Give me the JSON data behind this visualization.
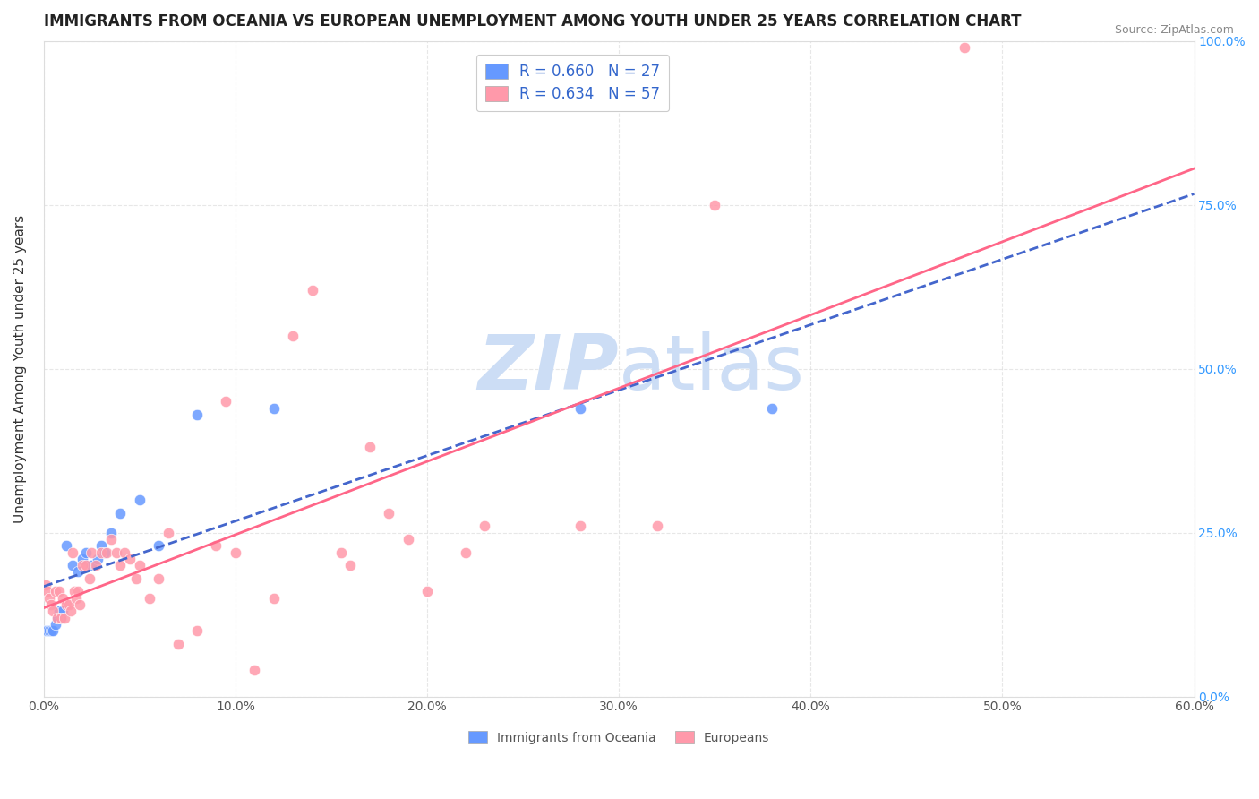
{
  "title": "IMMIGRANTS FROM OCEANIA VS EUROPEAN UNEMPLOYMENT AMONG YOUTH UNDER 25 YEARS CORRELATION CHART",
  "source": "Source: ZipAtlas.com",
  "xlabel": "",
  "ylabel": "Unemployment Among Youth under 25 years",
  "xlim": [
    0.0,
    0.6
  ],
  "ylim": [
    0.0,
    1.0
  ],
  "xticks": [
    0.0,
    0.1,
    0.2,
    0.3,
    0.4,
    0.5,
    0.6
  ],
  "xticklabels": [
    "0.0%",
    "10.0%",
    "20.0%",
    "30.0%",
    "40.0%",
    "50.0%",
    "60.0%"
  ],
  "yticks_left": [
    0.0,
    0.25,
    0.5,
    0.75,
    1.0
  ],
  "yticklabels_left": [
    "",
    "",
    "",
    "",
    ""
  ],
  "yticks_right": [
    0.0,
    0.25,
    0.5,
    0.75,
    1.0
  ],
  "yticklabels_right": [
    "0.0%",
    "25.0%",
    "50.0%",
    "75.0%",
    "100.0%"
  ],
  "legend_r1": "R = 0.660",
  "legend_n1": "N = 27",
  "legend_r2": "R = 0.634",
  "legend_n2": "N = 57",
  "color_blue": "#6699FF",
  "color_blue_line": "#4466CC",
  "color_pink": "#FF99AA",
  "color_pink_line": "#FF6688",
  "color_text_blue": "#3366CC",
  "color_right_axis": "#3399FF",
  "watermark_color": "#CCDDF5",
  "background_color": "#FFFFFF",
  "grid_color": "#DDDDDD",
  "oceania_x": [
    0.001,
    0.002,
    0.003,
    0.004,
    0.005,
    0.006,
    0.007,
    0.008,
    0.009,
    0.01,
    0.012,
    0.015,
    0.018,
    0.02,
    0.022,
    0.025,
    0.028,
    0.03,
    0.032,
    0.035,
    0.04,
    0.05,
    0.06,
    0.08,
    0.12,
    0.28,
    0.38
  ],
  "oceania_y": [
    0.1,
    0.1,
    0.1,
    0.1,
    0.1,
    0.11,
    0.12,
    0.13,
    0.12,
    0.13,
    0.23,
    0.2,
    0.19,
    0.21,
    0.22,
    0.2,
    0.21,
    0.23,
    0.22,
    0.25,
    0.28,
    0.3,
    0.23,
    0.43,
    0.44,
    0.44,
    0.44
  ],
  "europeans_x": [
    0.001,
    0.002,
    0.003,
    0.004,
    0.005,
    0.006,
    0.007,
    0.008,
    0.009,
    0.01,
    0.011,
    0.012,
    0.013,
    0.014,
    0.015,
    0.016,
    0.017,
    0.018,
    0.019,
    0.02,
    0.022,
    0.024,
    0.025,
    0.027,
    0.03,
    0.033,
    0.035,
    0.038,
    0.04,
    0.042,
    0.045,
    0.048,
    0.05,
    0.055,
    0.06,
    0.065,
    0.07,
    0.08,
    0.09,
    0.095,
    0.1,
    0.11,
    0.12,
    0.13,
    0.14,
    0.155,
    0.16,
    0.17,
    0.18,
    0.19,
    0.2,
    0.22,
    0.23,
    0.28,
    0.32,
    0.35,
    0.48
  ],
  "europeans_y": [
    0.17,
    0.16,
    0.15,
    0.14,
    0.13,
    0.16,
    0.12,
    0.16,
    0.12,
    0.15,
    0.12,
    0.14,
    0.14,
    0.13,
    0.22,
    0.16,
    0.15,
    0.16,
    0.14,
    0.2,
    0.2,
    0.18,
    0.22,
    0.2,
    0.22,
    0.22,
    0.24,
    0.22,
    0.2,
    0.22,
    0.21,
    0.18,
    0.2,
    0.15,
    0.18,
    0.25,
    0.08,
    0.1,
    0.23,
    0.45,
    0.22,
    0.04,
    0.15,
    0.55,
    0.62,
    0.22,
    0.2,
    0.38,
    0.28,
    0.24,
    0.16,
    0.22,
    0.26,
    0.26,
    0.26,
    0.75,
    0.99
  ]
}
